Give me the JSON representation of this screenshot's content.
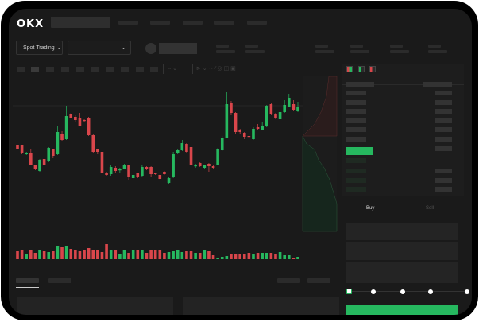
{
  "header": {
    "logo": "OKX"
  },
  "toolbar": {
    "market_selector": "Spot Trading"
  },
  "trade": {
    "tabs": [
      {
        "label": "Buy",
        "active": true
      },
      {
        "label": "Sell",
        "active": false
      }
    ],
    "slider_percent": 0
  },
  "colors": {
    "up": "#26b85f",
    "down": "#d9464b",
    "background": "#1a1a1a",
    "button": "#26b85f"
  },
  "icons": [
    "chevron-down-icon",
    "orderbook-both-icon",
    "orderbook-bids-icon",
    "orderbook-asks-icon"
  ],
  "chart_data": {
    "type": "candlestick",
    "candles": [
      [
        68,
        69,
        63,
        64
      ],
      [
        68,
        69,
        57,
        58
      ],
      [
        57,
        60,
        56,
        59
      ],
      [
        58,
        64,
        43,
        44
      ],
      [
        43,
        44,
        37,
        39
      ],
      [
        36,
        51,
        35,
        50
      ],
      [
        51,
        52,
        42,
        43
      ],
      [
        48,
        66,
        47,
        65
      ],
      [
        63,
        64,
        52,
        55
      ],
      [
        57,
        93,
        56,
        85
      ],
      [
        83,
        86,
        74,
        75
      ],
      [
        76,
        118,
        75,
        105
      ],
      [
        107,
        109,
        102,
        103
      ],
      [
        104,
        106,
        98,
        100
      ],
      [
        103,
        109,
        92,
        93
      ],
      [
        100,
        101,
        98,
        99
      ],
      [
        102,
        104,
        80,
        81
      ],
      [
        81,
        82,
        59,
        60
      ],
      [
        63,
        64,
        57,
        60
      ],
      [
        60,
        61,
        28,
        33
      ],
      [
        33,
        35,
        30,
        31
      ],
      [
        32,
        43,
        30,
        41
      ],
      [
        40,
        42,
        33,
        36
      ],
      [
        37,
        40,
        34,
        38
      ],
      [
        39,
        45,
        38,
        43
      ],
      [
        43,
        44,
        25,
        28
      ],
      [
        27,
        32,
        26,
        31
      ],
      [
        33,
        34,
        27,
        29
      ],
      [
        30,
        43,
        29,
        41
      ],
      [
        41,
        42,
        37,
        38
      ],
      [
        41,
        42,
        29,
        32
      ],
      [
        34,
        34,
        31,
        32
      ],
      [
        31,
        32,
        24,
        26
      ],
      [
        35,
        36,
        31,
        32
      ],
      [
        21,
        28,
        20,
        27
      ],
      [
        28,
        60,
        27,
        57
      ],
      [
        58,
        64,
        57,
        62
      ],
      [
        62,
        75,
        61,
        71
      ],
      [
        70,
        71,
        59,
        60
      ],
      [
        66,
        71,
        42,
        44
      ],
      [
        42,
        45,
        40,
        43
      ],
      [
        46,
        47,
        41,
        42
      ],
      [
        40,
        44,
        39,
        43
      ],
      [
        45,
        46,
        35,
        42
      ],
      [
        42,
        43,
        39,
        40
      ],
      [
        44,
        65,
        43,
        63
      ],
      [
        62,
        80,
        61,
        78
      ],
      [
        78,
        135,
        77,
        120
      ],
      [
        122,
        124,
        106,
        109
      ],
      [
        109,
        110,
        82,
        85
      ],
      [
        87,
        89,
        83,
        85
      ],
      [
        84,
        85,
        76,
        79
      ],
      [
        80,
        83,
        78,
        79
      ],
      [
        76,
        91,
        75,
        89
      ],
      [
        91,
        95,
        88,
        89
      ],
      [
        88,
        97,
        87,
        92
      ],
      [
        92,
        119,
        91,
        118
      ],
      [
        120,
        121,
        106,
        107
      ],
      [
        108,
        109,
        101,
        102
      ],
      [
        101,
        115,
        100,
        110
      ],
      [
        110,
        125,
        109,
        119
      ],
      [
        117,
        133,
        116,
        128
      ],
      [
        120,
        125,
        112,
        113
      ],
      [
        111,
        123,
        110,
        117
      ]
    ],
    "volumes": [
      10,
      11,
      7,
      11,
      8,
      12,
      10,
      9,
      10,
      17,
      15,
      17,
      13,
      12,
      10,
      12,
      14,
      11,
      12,
      9,
      19,
      12,
      12,
      7,
      11,
      8,
      12,
      12,
      11,
      8,
      12,
      11,
      12,
      8,
      9,
      10,
      11,
      9,
      10,
      10,
      8,
      8,
      11,
      10,
      5,
      2,
      3,
      4,
      7,
      7,
      6,
      7,
      8,
      6,
      8,
      8,
      8,
      8,
      7,
      9,
      5,
      5,
      2,
      3
    ],
    "grid": false,
    "axes": false
  }
}
